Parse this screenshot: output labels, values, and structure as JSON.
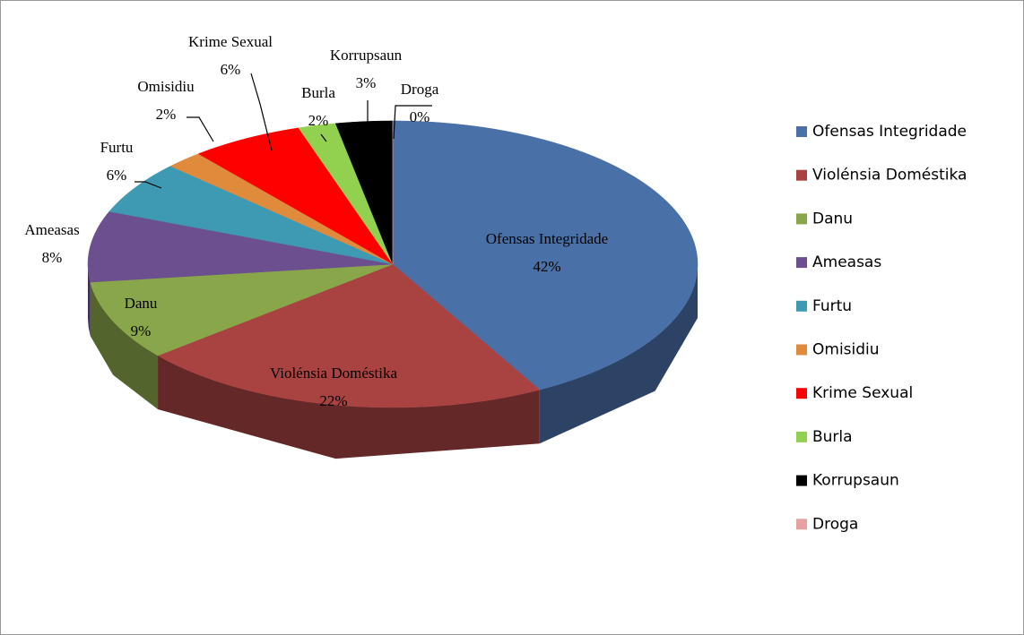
{
  "chart_data": {
    "type": "pie3d",
    "categories": [
      "Ofensas Integridade",
      "Violénsia Doméstika",
      "Danu",
      "Ameasas",
      "Furtu",
      "Omisidiu",
      "Krime Sexual",
      "Burla",
      "Korrupsaun",
      "Droga"
    ],
    "values": [
      42,
      22,
      9,
      8,
      6,
      2,
      6,
      2,
      3,
      0
    ],
    "value_labels": [
      "42%",
      "22%",
      "9%",
      "8%",
      "6%",
      "2%",
      "6%",
      "2%",
      "3%",
      "0%"
    ],
    "colors": [
      "#4a70a8",
      "#a94342",
      "#8aa64a",
      "#6c4f8e",
      "#3e9ab2",
      "#e08a3c",
      "#ff0000",
      "#92d050",
      "#000000",
      "#e8a0a0"
    ],
    "legend": "right"
  }
}
